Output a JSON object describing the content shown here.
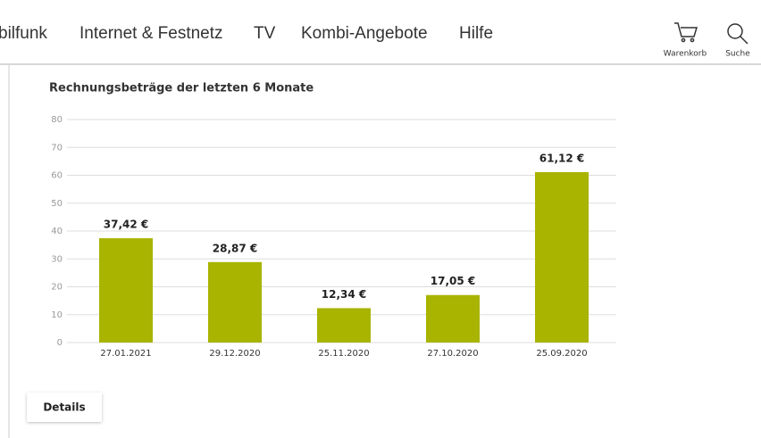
{
  "nav": {
    "items": [
      "bilfunk",
      "Internet & Festnetz",
      "TV",
      "Kombi-Angebote",
      "Hilfe"
    ],
    "cart": "Warenkorb",
    "search": "Suche"
  },
  "chart_data": {
    "type": "bar",
    "title": "Rechnungsbeträge der letzten 6 Monate",
    "categories": [
      "27.01.2021",
      "29.12.2020",
      "25.11.2020",
      "27.10.2020",
      "25.09.2020"
    ],
    "values": [
      37.42,
      28.87,
      12.34,
      17.05,
      61.12
    ],
    "value_labels": [
      "37,42 €",
      "28,87 €",
      "12,34 €",
      "17,05 €",
      "61,12 €"
    ],
    "color": "#a8b400",
    "ylim": [
      0,
      80
    ],
    "yticks": [
      0,
      10,
      20,
      30,
      40,
      50,
      60,
      70,
      80
    ],
    "grid": true
  },
  "button": {
    "label": "Details"
  }
}
